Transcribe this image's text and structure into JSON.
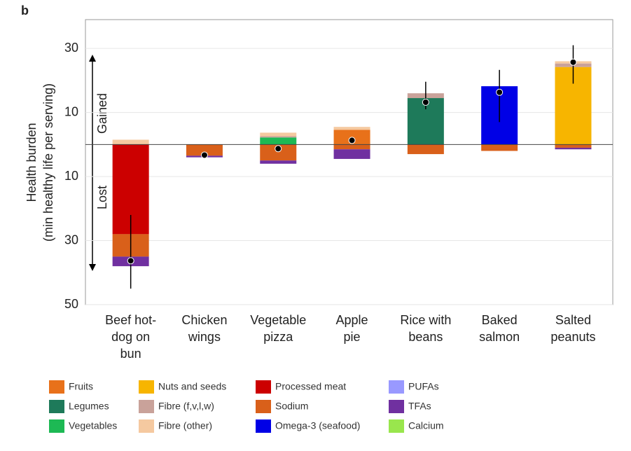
{
  "chart_data": {
    "type": "stacked_bar",
    "panel": "b",
    "y_label": [
      "Health burden",
      "(min healthy life per serving)"
    ],
    "annotations": {
      "gained": "Gained",
      "lost": "Lost"
    },
    "categories": [
      [
        "Beef hot-",
        "dog on",
        "bun"
      ],
      [
        "Chicken",
        "wings"
      ],
      [
        "Vegetable",
        "pizza"
      ],
      [
        "Apple",
        "pie"
      ],
      [
        "Rice with",
        "beans"
      ],
      [
        "Baked",
        "salmon"
      ],
      [
        "Salted",
        "peanuts"
      ]
    ],
    "ylim": [
      -50,
      39
    ],
    "yticks": [
      {
        "value": -50,
        "label": "50"
      },
      {
        "value": -30,
        "label": "30"
      },
      {
        "value": -10,
        "label": "10"
      },
      10,
      30
    ],
    "grid": true,
    "series": [
      {
        "name": "Fruits",
        "color": "#e8711a",
        "values": [
          null,
          null,
          null,
          4.6,
          null,
          null,
          null
        ]
      },
      {
        "name": "Legumes",
        "color": "#1e7a5a",
        "values": [
          null,
          null,
          null,
          null,
          14.5,
          null,
          null
        ]
      },
      {
        "name": "Vegetables",
        "color": "#1db954",
        "values": [
          null,
          null,
          2.2,
          null,
          null,
          null,
          null
        ]
      },
      {
        "name": "Nuts and seeds",
        "color": "#f7b500",
        "values": [
          null,
          null,
          null,
          null,
          null,
          null,
          24.2
        ]
      },
      {
        "name": "Fibre (f,v,l,w)",
        "color": "#c9a29a",
        "values": [
          null,
          null,
          0.4,
          null,
          1.5,
          null,
          1.1
        ]
      },
      {
        "name": "Fibre (other)",
        "color": "#f5c9a0",
        "values": [
          1.5,
          null,
          1.1,
          0.9,
          null,
          null,
          0.7
        ]
      },
      {
        "name": "Processed meat",
        "color": "#cc0000",
        "values": [
          -28,
          null,
          null,
          null,
          null,
          null,
          null
        ]
      },
      {
        "name": "Sodium",
        "color": "#d9601a",
        "values": [
          -7,
          -3.5,
          -5,
          -1.5,
          -3,
          -2,
          -1
        ]
      },
      {
        "name": "Omega-3 (seafood)",
        "color": "#0000e6",
        "values": [
          null,
          null,
          null,
          null,
          null,
          18.2,
          null
        ]
      },
      {
        "name": "PUFAs",
        "color": "#9999ff",
        "values": [
          null,
          null,
          null,
          null,
          null,
          null,
          null
        ]
      },
      {
        "name": "TFAs",
        "color": "#7030a0",
        "values": [
          -3,
          -0.5,
          -1,
          -3,
          null,
          null,
          -0.5
        ]
      },
      {
        "name": "Calcium",
        "color": "#99e64d",
        "values": [
          null,
          null,
          null,
          null,
          null,
          null,
          null
        ]
      }
    ],
    "totals": [
      -36.3,
      -3.3,
      -1.3,
      1.3,
      13.2,
      16.3,
      25.7
    ],
    "error_low": [
      -45,
      null,
      null,
      null,
      11,
      7,
      19
    ],
    "error_high": [
      -22,
      null,
      null,
      null,
      19.6,
      23.3,
      31
    ]
  }
}
